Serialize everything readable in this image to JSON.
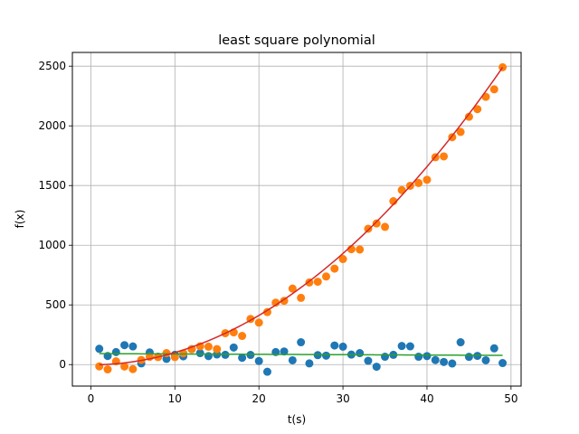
{
  "chart_data": {
    "type": "scatter",
    "title": "least square polynomial",
    "xlabel": "t(s)",
    "ylabel": "f(x)",
    "xlim": [
      -2.2,
      51.2
    ],
    "ylim": [
      -180,
      2615
    ],
    "xticks": [
      0,
      10,
      20,
      30,
      40,
      50
    ],
    "yticks": [
      0,
      500,
      1000,
      1500,
      2000,
      2500
    ],
    "grid": true,
    "series": [
      {
        "kind": "scatter",
        "color": "#1f77b4",
        "x": [
          1,
          2,
          3,
          4,
          5,
          6,
          7,
          8,
          9,
          10,
          11,
          12,
          13,
          14,
          15,
          16,
          17,
          18,
          19,
          20,
          21,
          22,
          23,
          24,
          25,
          26,
          27,
          28,
          29,
          30,
          31,
          32,
          33,
          34,
          35,
          36,
          37,
          38,
          39,
          40,
          41,
          42,
          43,
          44,
          45,
          46,
          47,
          48,
          49
        ],
        "y": [
          132,
          72,
          105,
          163,
          152,
          10,
          102,
          66,
          48,
          82,
          69,
          130,
          96,
          71,
          85,
          82,
          143,
          57,
          81,
          30,
          -60,
          105,
          110,
          36,
          187,
          10,
          79,
          75,
          160,
          150,
          84,
          96,
          32,
          -18,
          66,
          82,
          156,
          153,
          66,
          71,
          38,
          22,
          9,
          187,
          65,
          73,
          36,
          136,
          13
        ]
      },
      {
        "kind": "scatter",
        "color": "#ff7f0e",
        "x": [
          1,
          2,
          3,
          4,
          5,
          6,
          7,
          8,
          9,
          10,
          11,
          12,
          13,
          14,
          15,
          16,
          17,
          18,
          19,
          20,
          21,
          22,
          23,
          24,
          25,
          26,
          27,
          28,
          29,
          30,
          31,
          32,
          33,
          34,
          35,
          36,
          37,
          38,
          39,
          40,
          41,
          42,
          43,
          44,
          45,
          46,
          47,
          48,
          49
        ],
        "y": [
          -15,
          -40,
          27,
          -16,
          -38,
          39,
          65,
          63,
          96,
          63,
          95,
          129,
          153,
          150,
          130,
          263,
          270,
          240,
          382,
          352,
          440,
          519,
          534,
          637,
          559,
          688,
          694,
          738,
          804,
          884,
          967,
          964,
          1138,
          1182,
          1154,
          1369,
          1462,
          1498,
          1521,
          1548,
          1737,
          1744,
          1905,
          1949,
          2076,
          2140,
          2243,
          2306,
          2491
        ]
      },
      {
        "kind": "line",
        "color": "#2ca02c",
        "fit": [
          92.0,
          -0.3
        ],
        "x_range": [
          1,
          49
        ]
      },
      {
        "kind": "line",
        "color": "#d62728",
        "fit": [
          -2.0,
          -0.1,
          1.04
        ],
        "x_range": [
          1,
          49
        ]
      }
    ]
  }
}
